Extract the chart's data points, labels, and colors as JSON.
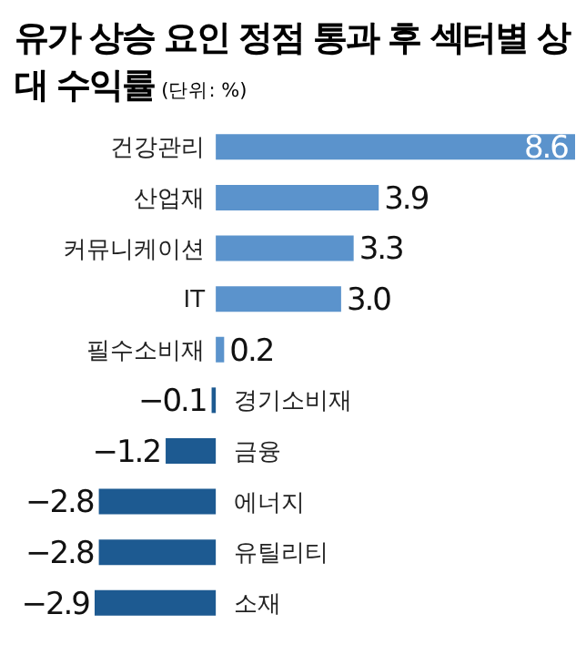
{
  "chart_data": {
    "type": "bar",
    "orientation": "horizontal",
    "title": "유가 상승 요인 정점 통과 후 섹터별 상대 수익률",
    "subtitle": "(단위: %)",
    "categories": [
      "건강관리",
      "산업재",
      "커뮤니케이션",
      "IT",
      "필수소비재",
      "경기소비재",
      "금융",
      "에너지",
      "유틸리티",
      "소재"
    ],
    "values": [
      8.6,
      3.9,
      3.3,
      3.0,
      0.2,
      -0.1,
      -1.2,
      -2.8,
      -2.8,
      -2.9
    ],
    "value_labels": [
      "8.6",
      "3.9",
      "3.3",
      "3.0",
      "0.2",
      "−0.1",
      "−1.2",
      "−2.8",
      "−2.8",
      "−2.9"
    ],
    "colors": [
      "#5b93cc",
      "#5b93cc",
      "#5b93cc",
      "#5b93cc",
      "#5b93cc",
      "#1d5a91",
      "#1d5a91",
      "#1d5a91",
      "#1d5a91",
      "#1d5a91"
    ],
    "legend": false
  }
}
